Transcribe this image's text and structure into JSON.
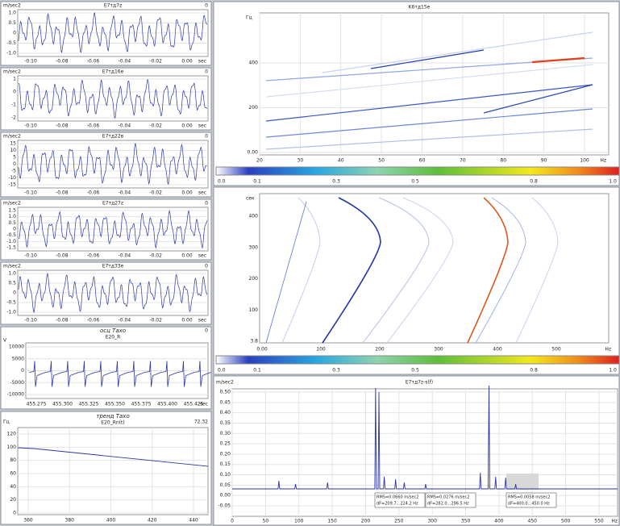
{
  "waveforms": [
    {
      "title": "E7тд7z",
      "unit": "m/sec2",
      "right": "0",
      "yticks": [
        "1.0",
        "0.5",
        "0",
        "-0.5",
        "-1.0"
      ],
      "xticks": [
        "-0.10",
        "-0.08",
        "-0.06",
        "-0.04",
        "-0.02",
        "0.00"
      ],
      "xunit": "sec"
    },
    {
      "title": "E7тд16e",
      "unit": "m/sec2",
      "right": "0",
      "yticks": [
        "1",
        "0",
        "-1",
        "-2"
      ],
      "xticks": [
        "-0.10",
        "-0.08",
        "-0.06",
        "-0.04",
        "-0.02",
        "0.00"
      ],
      "xunit": "sec"
    },
    {
      "title": "E7тд22в",
      "unit": "m/sec2",
      "right": "0",
      "yticks": [
        "15",
        "10",
        "5",
        "0",
        "-5",
        "-10",
        "-15"
      ],
      "xticks": [
        "-0.10",
        "-0.08",
        "-0.06",
        "-0.04",
        "-0.02",
        "0.00"
      ],
      "xunit": "sec"
    },
    {
      "title": "E7тд27z",
      "unit": "m/sec2",
      "right": "0",
      "yticks": [
        "1.5",
        "1.0",
        "0.5",
        "0",
        "-0.5",
        "-1.0",
        "-1.5"
      ],
      "xticks": [
        "-0.10",
        "-0.08",
        "-0.06",
        "-0.04",
        "-0.02",
        "0.00"
      ],
      "xunit": "sec"
    },
    {
      "title": "E7тд33e",
      "unit": "m/sec2",
      "right": "0",
      "yticks": [
        "1.0",
        "0.5",
        "0",
        "-0.5",
        "-1.0"
      ],
      "xticks": [
        "-0.10",
        "-0.08",
        "-0.06",
        "-0.04",
        "-0.02",
        "0.00"
      ],
      "xunit": "sec"
    }
  ],
  "tacho_osc": {
    "heading": "осц Тахо",
    "title": "E20_R",
    "unit": "V",
    "right": "0",
    "yticks": [
      "10000",
      "5000",
      "0",
      "-5000",
      "-10000"
    ],
    "xticks": [
      "455.275",
      "455.300",
      "455.325",
      "455.350",
      "455.375",
      "455.400",
      "455.425"
    ],
    "xunit": "sec"
  },
  "tacho_trend": {
    "heading": "тренд Тахо",
    "title": "E20_Rn(t)",
    "unit": "Гц",
    "right": "72.32",
    "yticks": [
      "120",
      "100",
      "80",
      "60",
      "40",
      "20",
      "0"
    ],
    "xticks": [
      "360",
      "380",
      "400",
      "420",
      "440"
    ]
  },
  "spectrogram_freq": {
    "title": "K6тд15e",
    "unit": "Гц",
    "yticks": [
      "400",
      "200",
      "0.00"
    ],
    "xticks": [
      "20",
      "30",
      "40",
      "50",
      "60",
      "70",
      "80",
      "90",
      "100"
    ],
    "xunit": "Hz"
  },
  "colorbar": {
    "ticks": [
      "0.0",
      "0.1",
      "0.3",
      "0.5",
      "0.8",
      "1.0"
    ]
  },
  "spectrogram_time": {
    "unit": "сек",
    "yticks": [
      "400",
      "300",
      "200",
      "100",
      "3.8"
    ],
    "xticks": [
      "0.00",
      "100",
      "200",
      "300",
      "400",
      "500"
    ],
    "xunit": "Hz"
  },
  "spectrum": {
    "title": "E7тд7z-s(f)",
    "unit": "m/sec2",
    "yticks": [
      "0.50",
      "0.45",
      "0.40",
      "0.35",
      "0.30",
      "0.25",
      "0.20",
      "0.15",
      "0.10",
      "0.05",
      "0.00",
      "-0.05"
    ],
    "xticks": [
      "0",
      "50",
      "100",
      "150",
      "200",
      "250",
      "300",
      "350",
      "400",
      "450",
      "500",
      "550"
    ],
    "xunit": "Hz",
    "annotations": [
      [
        "RMS=0.0660 m/sec2",
        "dF=209.7...224.2 Hz"
      ],
      [
        "RMS=0.0276 m/sec2",
        "dF=282.0...296.5 Hz"
      ],
      [
        "RMS=0.0058 m/sec2",
        "dF=400.0...450.0 Hz"
      ]
    ]
  }
}
